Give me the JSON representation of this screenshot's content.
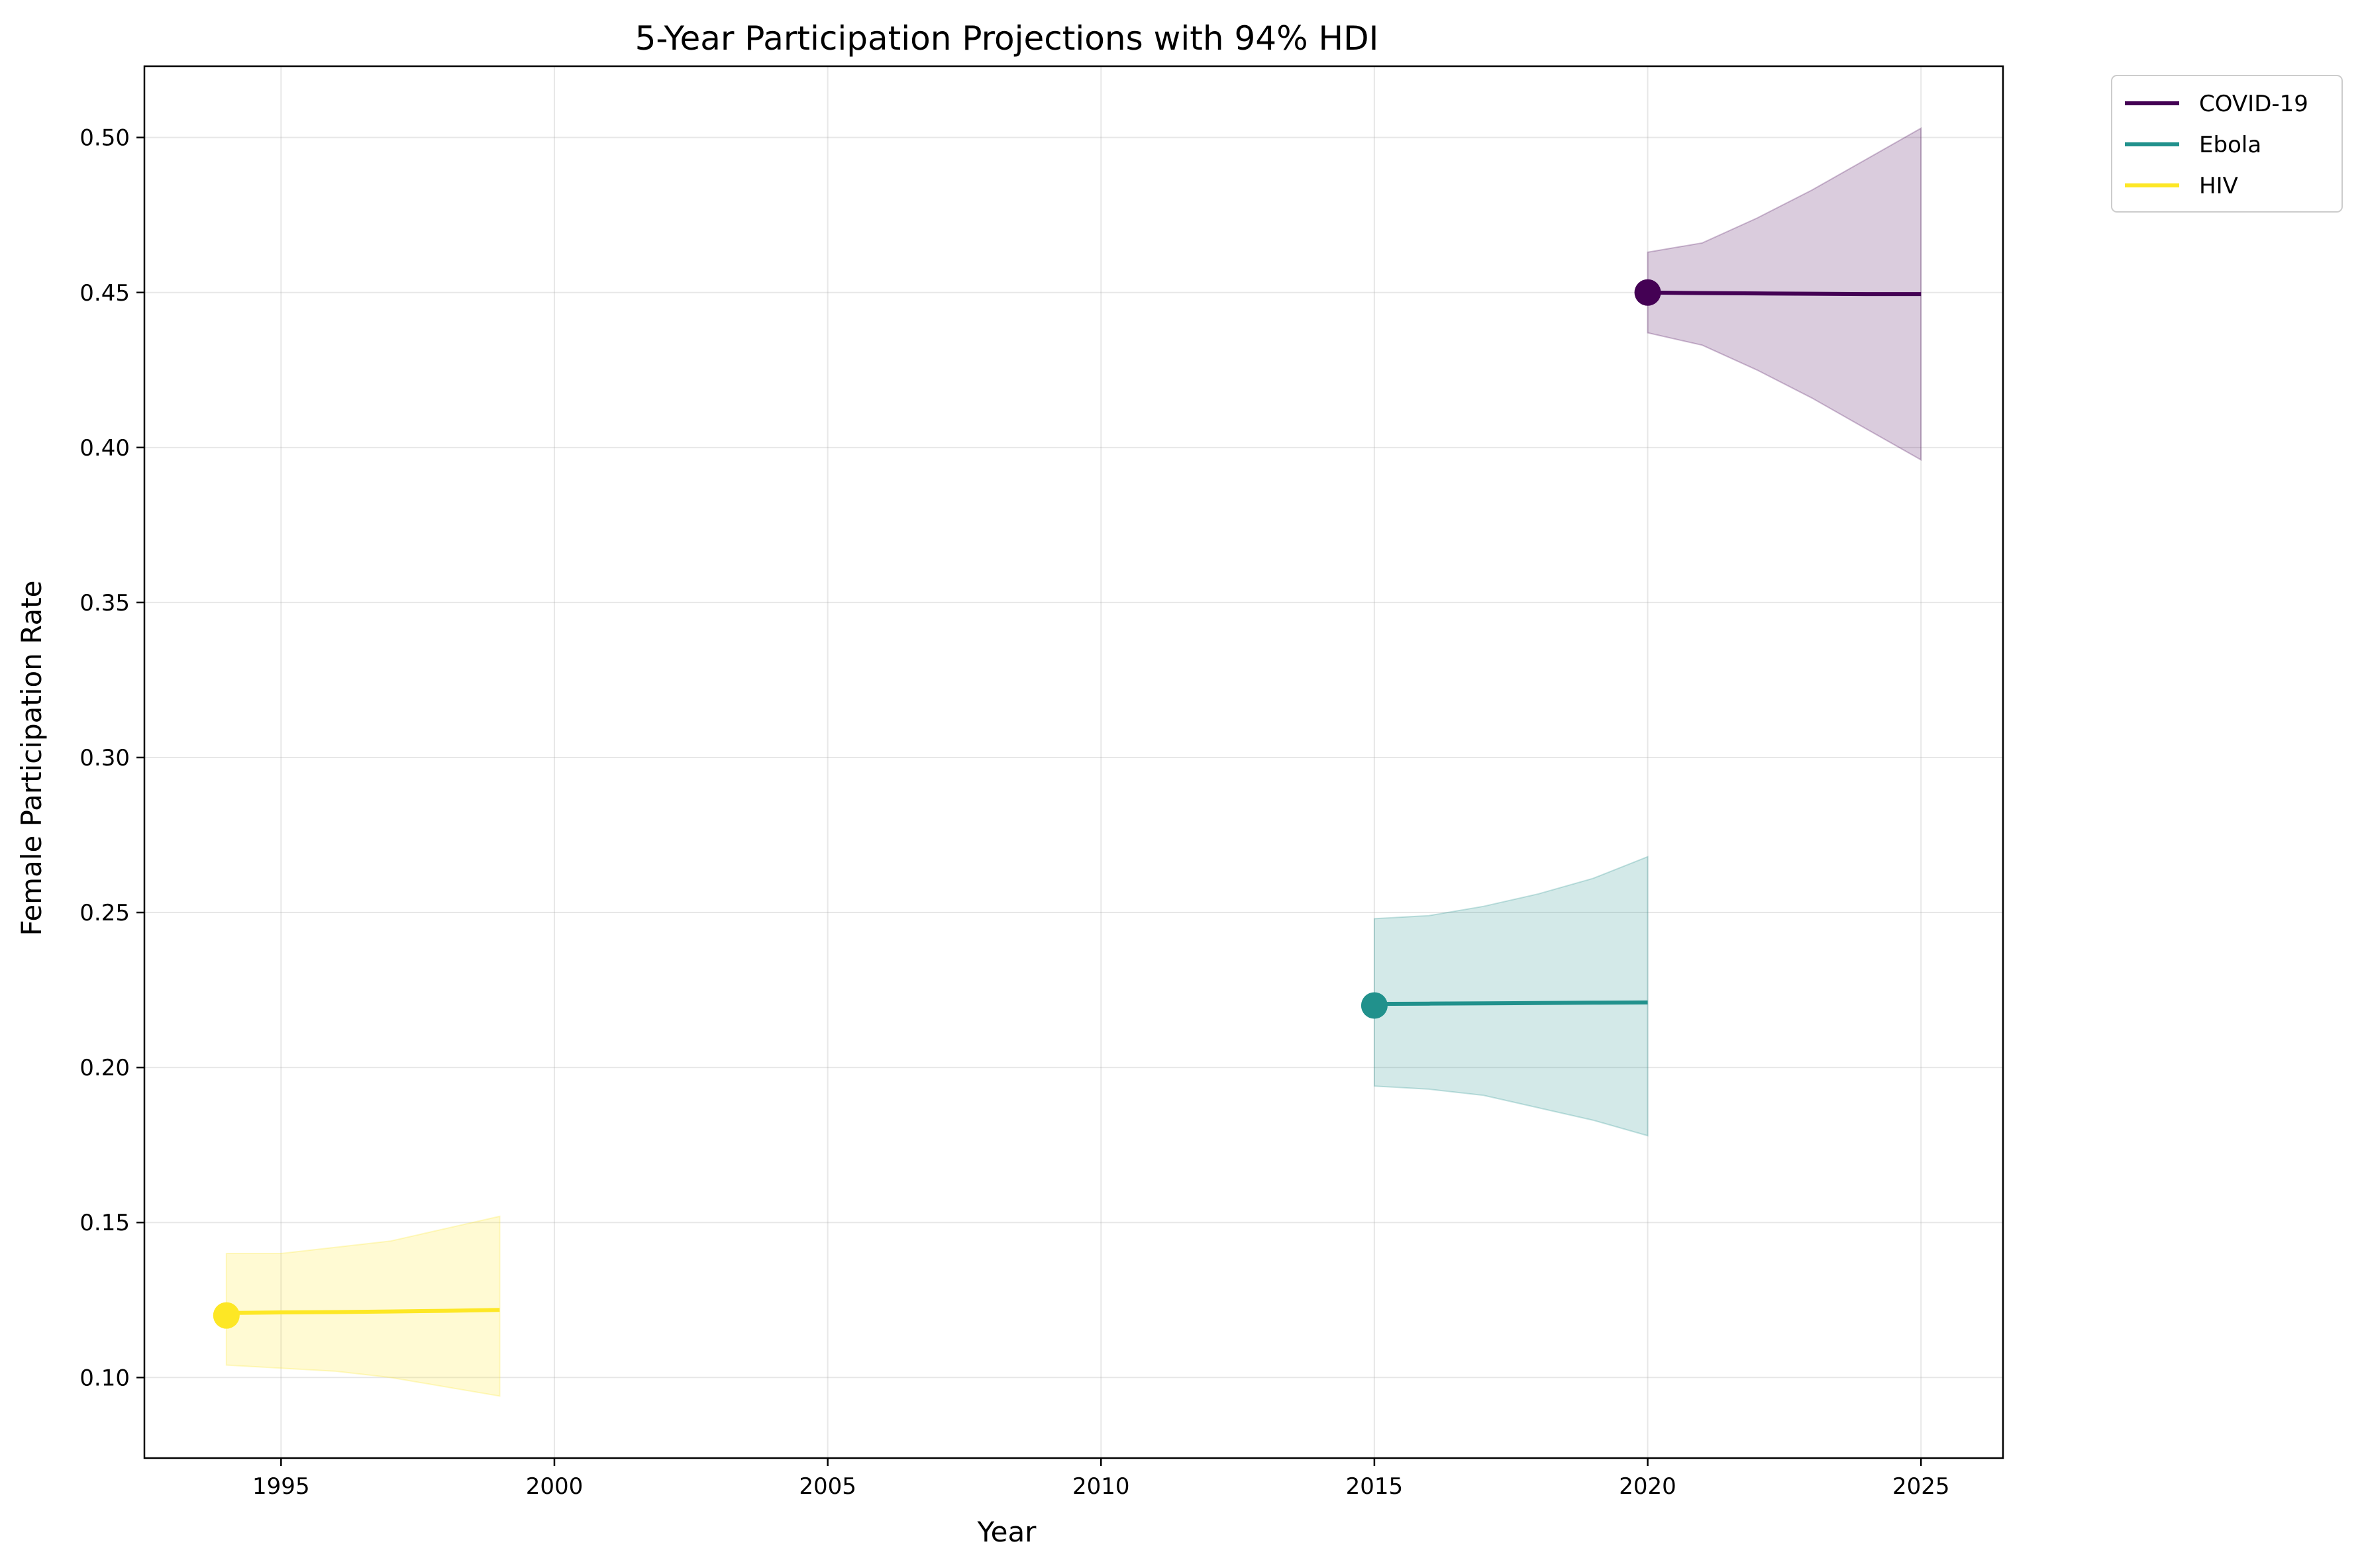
{
  "chart_data": {
    "type": "line",
    "title": "5-Year Participation Projections with 94% HDI",
    "xlabel": "Year",
    "ylabel": "Female Participation Rate",
    "xlim": [
      1992.5,
      2026.5
    ],
    "ylim": [
      0.074,
      0.523
    ],
    "x_ticks": [
      1995,
      2000,
      2005,
      2010,
      2015,
      2020,
      2025
    ],
    "x_tick_labels": [
      "1995",
      "2000",
      "2005",
      "2010",
      "2015",
      "2020",
      "2025"
    ],
    "y_ticks": [
      0.1,
      0.15,
      0.2,
      0.25,
      0.3,
      0.35,
      0.4,
      0.45,
      0.5
    ],
    "y_tick_labels": [
      "0.10",
      "0.15",
      "0.20",
      "0.25",
      "0.30",
      "0.35",
      "0.40",
      "0.45",
      "0.50"
    ],
    "grid": true,
    "legend_position": "outside-top-right",
    "series": [
      {
        "name": "COVID-19",
        "color": "#440154",
        "start_point": {
          "x": 2020,
          "y": 0.45
        },
        "x": [
          2020,
          2021,
          2022,
          2023,
          2024,
          2025
        ],
        "mean": [
          0.45,
          0.4498,
          0.4497,
          0.4496,
          0.4495,
          0.4495
        ],
        "hdi_lower": [
          0.437,
          0.433,
          0.425,
          0.416,
          0.406,
          0.396
        ],
        "hdi_upper": [
          0.463,
          0.466,
          0.474,
          0.483,
          0.493,
          0.503
        ]
      },
      {
        "name": "Ebola",
        "color": "#21918c",
        "start_point": {
          "x": 2015,
          "y": 0.22
        },
        "x": [
          2015,
          2016,
          2017,
          2018,
          2019,
          2020
        ],
        "mean": [
          0.2205,
          0.2206,
          0.2207,
          0.2208,
          0.2209,
          0.221
        ],
        "hdi_lower": [
          0.194,
          0.193,
          0.191,
          0.187,
          0.183,
          0.178
        ],
        "hdi_upper": [
          0.248,
          0.249,
          0.252,
          0.256,
          0.261,
          0.268
        ]
      },
      {
        "name": "HIV",
        "color": "#fde725",
        "start_point": {
          "x": 1994,
          "y": 0.12
        },
        "x": [
          1994,
          1995,
          1996,
          1997,
          1998,
          1999
        ],
        "mean": [
          0.1208,
          0.121,
          0.1211,
          0.1213,
          0.1215,
          0.1218
        ],
        "hdi_lower": [
          0.104,
          0.103,
          0.102,
          0.1,
          0.097,
          0.094
        ],
        "hdi_upper": [
          0.14,
          0.14,
          0.142,
          0.144,
          0.148,
          0.152
        ]
      }
    ]
  }
}
